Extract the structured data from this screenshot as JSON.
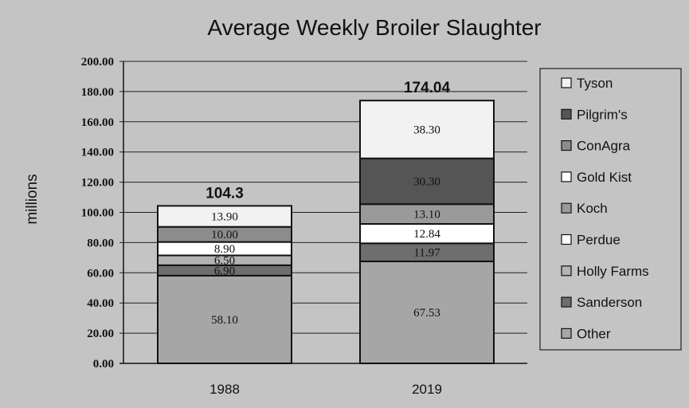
{
  "chart_data": {
    "type": "bar",
    "stacked": true,
    "title": "Average Weekly Broiler Slaughter",
    "ylabel": "millions",
    "xlabel": "",
    "ylim": [
      0,
      200
    ],
    "ytick_step": 20,
    "ytick_labels": [
      "0.00",
      "20.00",
      "40.00",
      "60.00",
      "80.00",
      "100.00",
      "120.00",
      "140.00",
      "160.00",
      "180.00",
      "200.00"
    ],
    "grid": true,
    "legend_position": "right",
    "categories": [
      "1988",
      "2019"
    ],
    "totals": [
      "104.3",
      "174.04"
    ],
    "series": [
      {
        "name": "Other",
        "values": [
          58.1,
          67.53
        ],
        "labels": [
          "58.10",
          "67.53"
        ],
        "color": "#a6a6a6"
      },
      {
        "name": "Sanderson",
        "values": [
          6.9,
          11.97
        ],
        "labels": [
          "6.90",
          "11.97"
        ],
        "color": "#6e6e6e"
      },
      {
        "name": "Holly Farms",
        "values": [
          6.5,
          0
        ],
        "labels": [
          "6.50",
          ""
        ],
        "color": "#b3b3b3"
      },
      {
        "name": "Perdue",
        "values": [
          8.9,
          12.84
        ],
        "labels": [
          "8.90",
          "12.84"
        ],
        "color": "#ffffff"
      },
      {
        "name": "Koch",
        "values": [
          0,
          13.1
        ],
        "labels": [
          "",
          "13.10"
        ],
        "color": "#9a9a9a"
      },
      {
        "name": "Gold Kist",
        "values": [
          0,
          0
        ],
        "labels": [
          "",
          ""
        ],
        "color": "#ffffff"
      },
      {
        "name": "ConAgra",
        "values": [
          10.0,
          0
        ],
        "labels": [
          "10.00",
          ""
        ],
        "color": "#8c8c8c"
      },
      {
        "name": "Pilgrim's",
        "values": [
          0,
          30.3
        ],
        "labels": [
          "",
          "30.30"
        ],
        "color": "#555555"
      },
      {
        "name": "Tyson",
        "values": [
          13.9,
          38.3
        ],
        "labels": [
          "13.90",
          "38.30"
        ],
        "color": "#f2f2f2"
      }
    ]
  }
}
